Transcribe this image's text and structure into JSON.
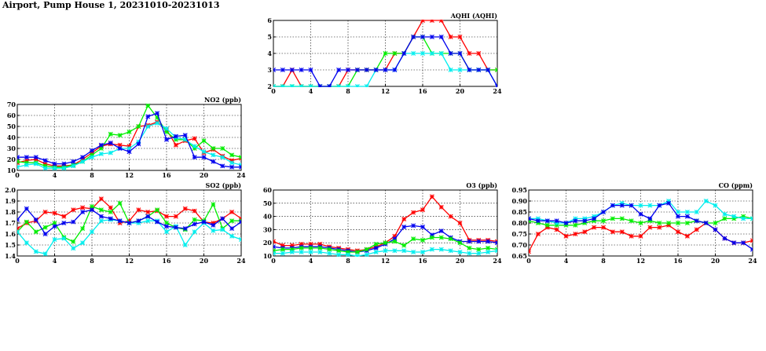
{
  "title": "Airport, Pump House 1, 20231010-20231013",
  "series_colors": [
    "#ff0000",
    "#00ee00",
    "#0000ee",
    "#00eeee"
  ],
  "chart_data": [
    {
      "id": "aqhi",
      "type": "line",
      "title": "AQHI (AQHI)",
      "xlim": [
        0,
        24
      ],
      "ylim": [
        2,
        6
      ],
      "xticks": [
        0,
        4,
        8,
        12,
        16,
        20,
        24
      ],
      "yticks": [
        2,
        3,
        4,
        5,
        6
      ],
      "x": [
        0,
        1,
        2,
        3,
        4,
        5,
        6,
        7,
        8,
        9,
        10,
        11,
        12,
        13,
        14,
        15,
        16,
        17,
        18,
        19,
        20,
        21,
        22,
        23,
        24
      ],
      "series": [
        {
          "color": "#ff0000",
          "values": [
            2,
            2,
            3,
            2,
            2,
            2,
            2,
            2,
            3,
            3,
            3,
            3,
            3,
            4,
            4,
            5,
            6,
            6,
            6,
            5,
            5,
            4,
            4,
            3,
            3
          ]
        },
        {
          "color": "#00ee00",
          "values": [
            2,
            2,
            2,
            2,
            2,
            2,
            2,
            2,
            2,
            3,
            3,
            3,
            4,
            4,
            4,
            5,
            5,
            4,
            4,
            4,
            4,
            3,
            3,
            3,
            3
          ]
        },
        {
          "color": "#00eeee",
          "values": [
            2,
            2,
            2,
            2,
            2,
            2,
            2,
            2,
            2,
            2,
            2,
            3,
            3,
            3,
            4,
            4,
            4,
            4,
            4,
            3,
            3,
            3,
            3,
            3,
            2
          ]
        },
        {
          "color": "#0000ee",
          "values": [
            3,
            3,
            3,
            3,
            3,
            2,
            2,
            3,
            3,
            3,
            3,
            3,
            3,
            3,
            4,
            5,
            5,
            5,
            5,
            4,
            4,
            3,
            3,
            3,
            2
          ]
        }
      ]
    },
    {
      "id": "no2",
      "type": "line",
      "title": "NO2 (ppb)",
      "xlim": [
        0,
        24
      ],
      "ylim": [
        10,
        70
      ],
      "xticks": [
        0,
        4,
        8,
        12,
        16,
        20,
        24
      ],
      "yticks": [
        10,
        20,
        30,
        40,
        50,
        60,
        70
      ],
      "x": [
        0,
        1,
        2,
        3,
        4,
        5,
        6,
        7,
        8,
        9,
        10,
        11,
        12,
        13,
        14,
        15,
        16,
        17,
        18,
        19,
        20,
        21,
        22,
        23,
        24
      ],
      "series": [
        {
          "color": "#ff0000",
          "values": [
            17,
            19,
            20,
            16,
            14,
            14,
            15,
            20,
            26,
            32,
            34,
            33,
            32,
            50,
            51,
            54,
            47,
            33,
            37,
            39,
            26,
            29,
            23,
            19,
            21
          ]
        },
        {
          "color": "#00ee00",
          "values": [
            18,
            17,
            17,
            14,
            13,
            13,
            15,
            18,
            24,
            30,
            43,
            42,
            45,
            50,
            69,
            58,
            45,
            38,
            38,
            30,
            37,
            30,
            30,
            24,
            22
          ]
        },
        {
          "color": "#00eeee",
          "values": [
            13,
            15,
            16,
            12,
            12,
            12,
            14,
            18,
            22,
            25,
            26,
            30,
            30,
            36,
            50,
            53,
            48,
            40,
            38,
            32,
            27,
            24,
            22,
            17,
            15
          ]
        },
        {
          "color": "#0000ee",
          "values": [
            22,
            22,
            22,
            19,
            16,
            16,
            18,
            22,
            28,
            33,
            35,
            30,
            27,
            34,
            59,
            62,
            38,
            41,
            42,
            22,
            22,
            18,
            14,
            13,
            13
          ]
        }
      ]
    },
    {
      "id": "so2",
      "type": "line",
      "title": "SO2 (ppb)",
      "xlim": [
        0,
        24
      ],
      "ylim": [
        1.4,
        2.0
      ],
      "xticks": [
        0,
        4,
        8,
        12,
        16,
        20,
        24
      ],
      "yticks": [
        1.4,
        1.5,
        1.6,
        1.7,
        1.8,
        1.9,
        2.0
      ],
      "ytick_labels": [
        "1.4",
        "1.5",
        "1.6",
        "1.7",
        "1.8",
        "1.9",
        "2.0"
      ],
      "x": [
        0,
        1,
        2,
        3,
        4,
        5,
        6,
        7,
        8,
        9,
        10,
        11,
        12,
        13,
        14,
        15,
        16,
        17,
        18,
        19,
        20,
        21,
        22,
        23,
        24
      ],
      "series": [
        {
          "color": "#ff0000",
          "values": [
            1.65,
            1.7,
            1.72,
            1.8,
            1.79,
            1.76,
            1.82,
            1.84,
            1.83,
            1.92,
            1.84,
            1.7,
            1.72,
            1.82,
            1.8,
            1.81,
            1.76,
            1.76,
            1.83,
            1.81,
            1.71,
            1.7,
            1.74,
            1.8,
            1.74
          ]
        },
        {
          "color": "#00ee00",
          "values": [
            1.62,
            1.71,
            1.62,
            1.66,
            1.7,
            1.57,
            1.53,
            1.65,
            1.85,
            1.82,
            1.8,
            1.88,
            1.7,
            1.72,
            1.76,
            1.82,
            1.7,
            1.66,
            1.64,
            1.73,
            1.72,
            1.87,
            1.65,
            1.72,
            1.72
          ]
        },
        {
          "color": "#00eeee",
          "values": [
            1.62,
            1.52,
            1.44,
            1.42,
            1.55,
            1.56,
            1.47,
            1.52,
            1.62,
            1.72,
            1.73,
            1.72,
            1.7,
            1.7,
            1.72,
            1.72,
            1.62,
            1.67,
            1.5,
            1.62,
            1.7,
            1.63,
            1.64,
            1.58,
            1.55
          ]
        },
        {
          "color": "#0000ee",
          "values": [
            1.73,
            1.83,
            1.73,
            1.6,
            1.67,
            1.7,
            1.71,
            1.8,
            1.82,
            1.76,
            1.74,
            1.72,
            1.7,
            1.72,
            1.76,
            1.71,
            1.67,
            1.66,
            1.65,
            1.69,
            1.71,
            1.68,
            1.74,
            1.65,
            1.71
          ]
        }
      ]
    },
    {
      "id": "o3",
      "type": "line",
      "title": "O3 (ppb)",
      "xlim": [
        0,
        24
      ],
      "ylim": [
        10,
        60
      ],
      "xticks": [
        0,
        4,
        8,
        12,
        16,
        20,
        24
      ],
      "yticks": [
        10,
        20,
        30,
        40,
        50,
        60
      ],
      "x": [
        0,
        1,
        2,
        3,
        4,
        5,
        6,
        7,
        8,
        9,
        10,
        11,
        12,
        13,
        14,
        15,
        16,
        17,
        18,
        19,
        20,
        21,
        22,
        23,
        24
      ],
      "series": [
        {
          "color": "#ff0000",
          "values": [
            21,
            18,
            18,
            19,
            19,
            19,
            17,
            16,
            15,
            14,
            15,
            17,
            20,
            25,
            38,
            43,
            45,
            55,
            47,
            40,
            35,
            22,
            22,
            22,
            21
          ]
        },
        {
          "color": "#0000ee",
          "values": [
            17,
            16,
            16,
            17,
            17,
            17,
            16,
            15,
            14,
            13,
            14,
            16,
            19,
            23,
            32,
            33,
            32,
            26,
            29,
            24,
            21,
            21,
            21,
            21,
            20
          ]
        },
        {
          "color": "#00ee00",
          "values": [
            14,
            15,
            15,
            16,
            16,
            16,
            15,
            14,
            13,
            13,
            15,
            19,
            20,
            21,
            18,
            23,
            22,
            24,
            24,
            23,
            20,
            16,
            15,
            16,
            15
          ]
        },
        {
          "color": "#00eeee",
          "values": [
            12,
            12,
            13,
            13,
            13,
            13,
            12,
            11,
            11,
            10,
            11,
            13,
            14,
            14,
            14,
            13,
            13,
            15,
            15,
            14,
            13,
            12,
            12,
            13,
            14
          ]
        }
      ]
    },
    {
      "id": "co",
      "type": "line",
      "title": "CO (ppm)",
      "xlim": [
        0,
        24
      ],
      "ylim": [
        0.65,
        0.95
      ],
      "xticks": [
        0,
        4,
        8,
        12,
        16,
        20,
        24
      ],
      "yticks": [
        0.65,
        0.7,
        0.75,
        0.8,
        0.85,
        0.9,
        0.95
      ],
      "ytick_labels": [
        "0.65",
        "0.70",
        "0.75",
        "0.80",
        "0.85",
        "0.90",
        "0.95"
      ],
      "x": [
        0,
        1,
        2,
        3,
        4,
        5,
        6,
        7,
        8,
        9,
        10,
        11,
        12,
        13,
        14,
        15,
        16,
        17,
        18,
        19,
        20,
        21,
        22,
        23,
        24
      ],
      "series": [
        {
          "color": "#ff0000",
          "values": [
            0.67,
            0.75,
            0.78,
            0.77,
            0.74,
            0.75,
            0.76,
            0.78,
            0.78,
            0.76,
            0.76,
            0.74,
            0.74,
            0.78,
            0.78,
            0.79,
            0.76,
            0.74,
            0.77,
            0.8,
            0.77,
            0.73,
            0.71,
            0.71,
            0.72
          ]
        },
        {
          "color": "#00ee00",
          "values": [
            0.81,
            0.8,
            0.79,
            0.79,
            0.79,
            0.79,
            0.8,
            0.81,
            0.81,
            0.82,
            0.82,
            0.81,
            0.8,
            0.81,
            0.8,
            0.8,
            0.8,
            0.8,
            0.81,
            0.8,
            0.8,
            0.82,
            0.82,
            0.83,
            0.82
          ]
        },
        {
          "color": "#00eeee",
          "values": [
            0.82,
            0.82,
            0.81,
            0.8,
            0.8,
            0.82,
            0.82,
            0.83,
            0.85,
            0.88,
            0.89,
            0.88,
            0.88,
            0.88,
            0.88,
            0.9,
            0.85,
            0.85,
            0.85,
            0.9,
            0.88,
            0.84,
            0.83,
            0.82,
            0.82
          ]
        },
        {
          "color": "#0000ee",
          "values": [
            0.82,
            0.81,
            0.81,
            0.81,
            0.8,
            0.81,
            0.81,
            0.82,
            0.85,
            0.88,
            0.88,
            0.88,
            0.84,
            0.82,
            0.88,
            0.89,
            0.83,
            0.83,
            0.81,
            0.8,
            0.77,
            0.73,
            0.71,
            0.71,
            0.68
          ]
        }
      ]
    }
  ]
}
